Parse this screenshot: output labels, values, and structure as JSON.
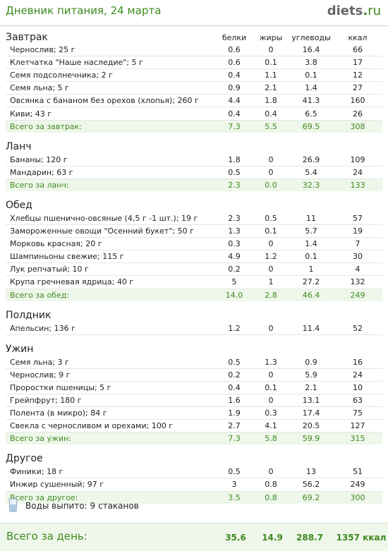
{
  "header": {
    "title": "Дневник питания, 24 марта",
    "logo_main": "diets",
    "logo_dot": ".",
    "logo_tld": "ru"
  },
  "columns": {
    "protein": "белки",
    "fat": "жиры",
    "carbs": "углеводы",
    "kcal": "ккал"
  },
  "meals": [
    {
      "title": "Завтрак",
      "items": [
        {
          "name": "Чернослив; 25 г",
          "protein": "0.6",
          "fat": "0",
          "carbs": "16.4",
          "kcal": "66"
        },
        {
          "name": "Клетчатка \"Наше наследие\"; 5 г",
          "protein": "0.6",
          "fat": "0.1",
          "carbs": "3.8",
          "kcal": "17"
        },
        {
          "name": "Семя подсолнечника; 2 г",
          "protein": "0.4",
          "fat": "1.1",
          "carbs": "0.1",
          "kcal": "12"
        },
        {
          "name": "Семя льна; 5 г",
          "protein": "0.9",
          "fat": "2.1",
          "carbs": "1.4",
          "kcal": "27"
        },
        {
          "name": "Овсянка с бананом без орехов (хлопья); 260 г",
          "protein": "4.4",
          "fat": "1.8",
          "carbs": "41.3",
          "kcal": "160"
        },
        {
          "name": "Киви; 43 г",
          "protein": "0.4",
          "fat": "0.4",
          "carbs": "6.5",
          "kcal": "26"
        }
      ],
      "total": {
        "label": "Всего за завтрак:",
        "protein": "7.3",
        "fat": "5.5",
        "carbs": "69.5",
        "kcal": "308"
      }
    },
    {
      "title": "Ланч",
      "items": [
        {
          "name": "Бананы; 120 г",
          "protein": "1.8",
          "fat": "0",
          "carbs": "26.9",
          "kcal": "109"
        },
        {
          "name": "Мандарин; 63 г",
          "protein": "0.5",
          "fat": "0",
          "carbs": "5.4",
          "kcal": "24"
        }
      ],
      "total": {
        "label": "Всего за ланч:",
        "protein": "2.3",
        "fat": "0.0",
        "carbs": "32.3",
        "kcal": "133"
      }
    },
    {
      "title": "Обед",
      "items": [
        {
          "name": "Хлебцы пшенично-овсяные (4,5 г -1 шт.); 19 г",
          "protein": "2.3",
          "fat": "0.5",
          "carbs": "11",
          "kcal": "57"
        },
        {
          "name": "Замороженные овощи \"Осенний букет\"; 50 г",
          "protein": "1.3",
          "fat": "0.1",
          "carbs": "5.7",
          "kcal": "19"
        },
        {
          "name": "Морковь красная; 20 г",
          "protein": "0.3",
          "fat": "0",
          "carbs": "1.4",
          "kcal": "7"
        },
        {
          "name": "Шампиньоны свежие; 115 г",
          "protein": "4.9",
          "fat": "1.2",
          "carbs": "0.1",
          "kcal": "30"
        },
        {
          "name": "Лук репчатый; 10 г",
          "protein": "0.2",
          "fat": "0",
          "carbs": "1",
          "kcal": "4"
        },
        {
          "name": "Крупа гречневая ядрица; 40 г",
          "protein": "5",
          "fat": "1",
          "carbs": "27.2",
          "kcal": "132"
        }
      ],
      "total": {
        "label": "Всего за обед:",
        "protein": "14.0",
        "fat": "2.8",
        "carbs": "46.4",
        "kcal": "249"
      }
    },
    {
      "title": "Полдник",
      "items": [
        {
          "name": "Апельсин; 136 г",
          "protein": "1.2",
          "fat": "0",
          "carbs": "11.4",
          "kcal": "52"
        }
      ],
      "total": null
    },
    {
      "title": "Ужин",
      "items": [
        {
          "name": "Семя льна; 3 г",
          "protein": "0.5",
          "fat": "1.3",
          "carbs": "0.9",
          "kcal": "16"
        },
        {
          "name": "Чернослив; 9 г",
          "protein": "0.2",
          "fat": "0",
          "carbs": "5.9",
          "kcal": "24"
        },
        {
          "name": "Проростки пшеницы; 5 г",
          "protein": "0.4",
          "fat": "0.1",
          "carbs": "2.1",
          "kcal": "10"
        },
        {
          "name": "Грейпфрут; 180 г",
          "protein": "1.6",
          "fat": "0",
          "carbs": "13.1",
          "kcal": "63"
        },
        {
          "name": "Полента (в микро); 84 г",
          "protein": "1.9",
          "fat": "0.3",
          "carbs": "17.4",
          "kcal": "75"
        },
        {
          "name": "Свекла с черносливом и орехами; 100 г",
          "protein": "2.7",
          "fat": "4.1",
          "carbs": "20.5",
          "kcal": "127"
        }
      ],
      "total": {
        "label": "Всего за ужин:",
        "protein": "7.3",
        "fat": "5.8",
        "carbs": "59.9",
        "kcal": "315"
      }
    },
    {
      "title": "Другое",
      "items": [
        {
          "name": "Финики; 18 г",
          "protein": "0.5",
          "fat": "0",
          "carbs": "13",
          "kcal": "51"
        },
        {
          "name": "Инжир сушенный; 97 г",
          "protein": "3",
          "fat": "0.8",
          "carbs": "56.2",
          "kcal": "249"
        }
      ],
      "total": {
        "label": "Всего за другое:",
        "protein": "3.5",
        "fat": "0.8",
        "carbs": "69.2",
        "kcal": "300"
      }
    }
  ],
  "water": {
    "icon": "glass-icon",
    "label": "Воды выпито: 9 стаканов"
  },
  "day_total": {
    "label": "Всего за день:",
    "protein": "35.6",
    "fat": "14.9",
    "carbs": "288.7",
    "kcal": "1357 ккал"
  },
  "colors": {
    "accent": "#3d8a1e",
    "total_bg": "#eef7ea",
    "row_border": "#e6e6e6"
  }
}
